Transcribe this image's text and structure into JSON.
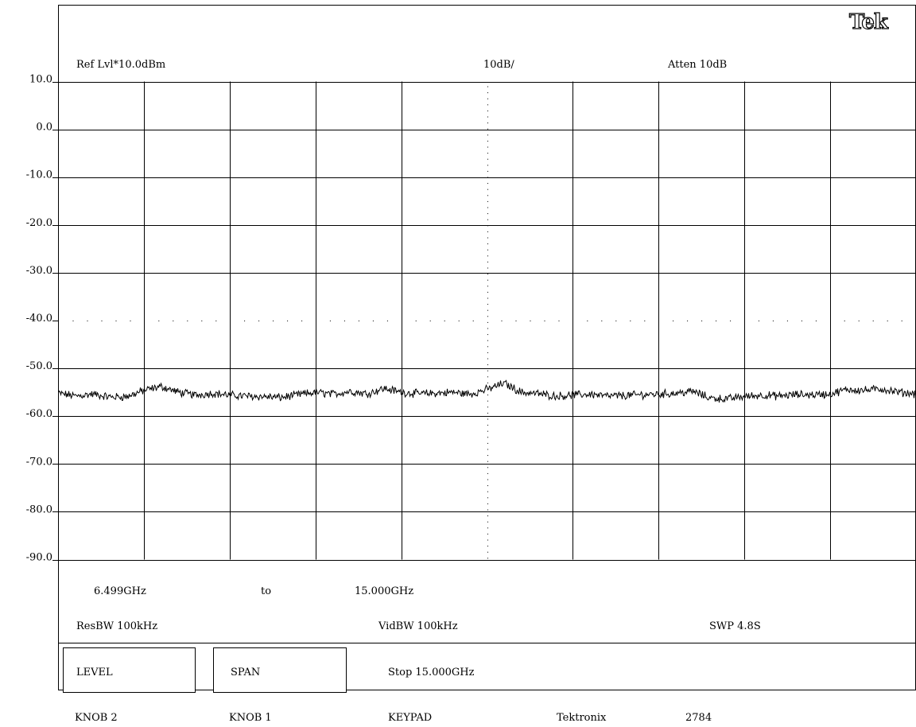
{
  "brand": "Tek",
  "header": {
    "ref_level": "Ref Lvl*10.0dBm",
    "scale": "10dB/",
    "atten": "Atten 10dB"
  },
  "status": {
    "start_freq": "6.499GHz",
    "to": "to",
    "stop_freq": "15.000GHz",
    "res_bw": "ResBW 100kHz",
    "vid_bw": "VidBW 100kHz",
    "sweep": "SWP 4.8S"
  },
  "menu": {
    "level_label": "LEVEL",
    "span_label": "SPAN",
    "stop_readout": "Stop  15.000GHz"
  },
  "footer": {
    "knob2": "KNOB 2",
    "knob1": "KNOB 1",
    "keypad": "KEYPAD",
    "maker": "Tektronix",
    "model": "2784"
  },
  "colors": {
    "trace": "#000000",
    "grid": "#000000",
    "background": "#ffffff"
  },
  "chart_data": {
    "type": "line",
    "x_unit": "GHz",
    "y_unit": "dBm",
    "xlim": [
      6.499,
      15.0
    ],
    "ylim": [
      -90,
      10
    ],
    "y_ticks": [
      "10.0",
      "0.0",
      "-10.0",
      "-20.0",
      "-30.0",
      "-40.0",
      "-50.0",
      "-60.0",
      "-70.0",
      "-80.0",
      "-90.0"
    ],
    "grid": true,
    "x_divisions": 10,
    "threshold_dbm": -40,
    "series": [
      {
        "x": [
          6.499,
          6.67,
          6.84,
          7.01,
          7.18,
          7.35,
          7.52,
          7.69,
          7.86,
          8.03,
          8.2,
          8.37,
          8.54,
          8.71,
          8.88,
          9.05,
          9.22,
          9.39,
          9.56,
          9.73,
          9.9,
          10.07,
          10.24,
          10.41,
          10.58,
          10.75,
          10.92,
          11.09,
          11.26,
          11.43,
          11.6,
          11.77,
          11.94,
          12.11,
          12.28,
          12.45,
          12.62,
          12.79,
          12.96,
          13.13,
          13.3,
          13.47,
          13.64,
          13.81,
          13.98,
          14.15,
          14.32,
          14.49,
          14.66,
          14.83,
          15.0
        ],
        "y": [
          -55.2,
          -55.8,
          -55.4,
          -56.0,
          -55.9,
          -54.6,
          -53.8,
          -55.0,
          -55.6,
          -55.2,
          -55.6,
          -55.8,
          -55.9,
          -56.1,
          -55.5,
          -55.0,
          -55.4,
          -54.8,
          -55.3,
          -54.2,
          -55.0,
          -55.3,
          -55.2,
          -55.0,
          -55.4,
          -54.4,
          -53.1,
          -55.0,
          -55.3,
          -55.8,
          -55.6,
          -55.4,
          -55.8,
          -55.7,
          -55.5,
          -55.4,
          -55.2,
          -54.8,
          -56.2,
          -56.4,
          -55.9,
          -55.6,
          -55.8,
          -55.5,
          -55.5,
          -55.4,
          -54.4,
          -54.6,
          -54.3,
          -55.0,
          -55.3
        ]
      }
    ]
  }
}
